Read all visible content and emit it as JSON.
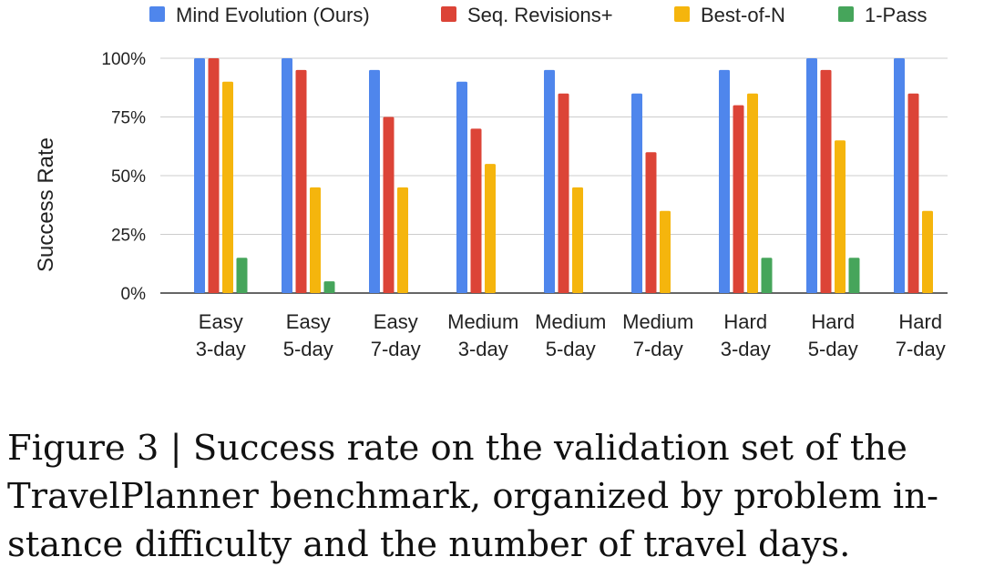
{
  "chart_data": {
    "type": "bar",
    "title": "",
    "xlabel": "",
    "ylabel": "Success Rate",
    "ylim": [
      0,
      100
    ],
    "yticks": [
      "0%",
      "25%",
      "50%",
      "75%",
      "100%"
    ],
    "ytick_values": [
      0,
      25,
      50,
      75,
      100
    ],
    "grid": true,
    "legend_position": "top",
    "categories": [
      [
        "Easy",
        "3-day"
      ],
      [
        "Easy",
        "5-day"
      ],
      [
        "Easy",
        "7-day"
      ],
      [
        "Medium",
        "3-day"
      ],
      [
        "Medium",
        "5-day"
      ],
      [
        "Medium",
        "7-day"
      ],
      [
        "Hard",
        "3-day"
      ],
      [
        "Hard",
        "5-day"
      ],
      [
        "Hard",
        "7-day"
      ]
    ],
    "series": [
      {
        "name": "Mind Evolution (Ours)",
        "color": "#4f86ec",
        "values": [
          100,
          100,
          95,
          90,
          95,
          85,
          95,
          100,
          100
        ]
      },
      {
        "name": "Seq. Revisions+",
        "color": "#dc4437",
        "values": [
          100,
          95,
          75,
          70,
          85,
          60,
          80,
          95,
          85
        ]
      },
      {
        "name": "Best-of-N",
        "color": "#f5b50d",
        "values": [
          90,
          45,
          45,
          55,
          45,
          35,
          85,
          65,
          35
        ]
      },
      {
        "name": "1-Pass",
        "color": "#46a55b",
        "values": [
          15,
          5,
          0,
          0,
          0,
          0,
          15,
          15,
          0
        ]
      }
    ]
  },
  "caption": [
    "Figure 3 | Success rate on the validation set of the",
    "TravelPlanner benchmark, organized by problem in-",
    "stance difficulty and the number of travel days."
  ]
}
